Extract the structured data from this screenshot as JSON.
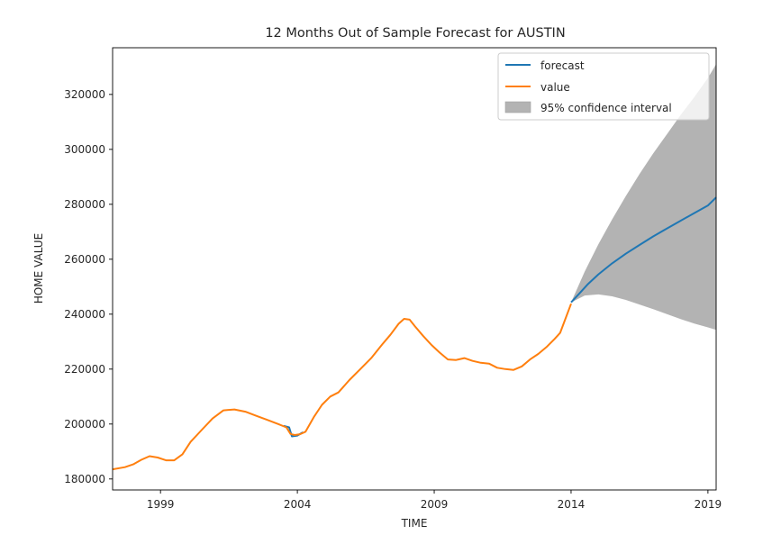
{
  "chart_data": {
    "type": "line",
    "title": "12 Months Out of Sample Forecast for AUSTIN",
    "xlabel": "TIME",
    "ylabel": "HOME VALUE",
    "xlim": [
      1997.25,
      2019.3
    ],
    "ylim": [
      176000,
      337000
    ],
    "xticks": [
      1999,
      2004,
      2009,
      2014,
      2019
    ],
    "xtick_labels": [
      "1999",
      "2004",
      "2009",
      "2014",
      "2019"
    ],
    "yticks": [
      180000,
      200000,
      220000,
      240000,
      260000,
      280000,
      300000,
      320000
    ],
    "ytick_labels": [
      "180000",
      "200000",
      "220000",
      "240000",
      "260000",
      "280000",
      "300000",
      "320000"
    ],
    "grid": false,
    "legend_position": "top-right",
    "series": [
      {
        "name": "value",
        "color": "#ff7f0e",
        "x": [
          1997.25,
          1997.7,
          1998.0,
          1998.3,
          1998.6,
          1998.9,
          1999.2,
          1999.5,
          1999.8,
          2000.1,
          2000.5,
          2000.9,
          2001.3,
          2001.7,
          2002.1,
          2002.5,
          2002.9,
          2003.3,
          2003.6,
          2003.75,
          2003.9,
          2004.1,
          2004.3,
          2004.6,
          2004.9,
          2005.2,
          2005.5,
          2005.9,
          2006.3,
          2006.7,
          2007.1,
          2007.4,
          2007.7,
          2007.9,
          2008.1,
          2008.3,
          2008.6,
          2008.9,
          2009.2,
          2009.5,
          2009.8,
          2010.1,
          2010.4,
          2010.7,
          2011.0,
          2011.3,
          2011.6,
          2011.9,
          2012.2,
          2012.5,
          2012.8,
          2013.1,
          2013.4,
          2013.6,
          2013.8,
          2014.0
        ],
        "y": [
          183500,
          184300,
          185300,
          187000,
          188300,
          187800,
          186800,
          186800,
          189000,
          193500,
          197800,
          202000,
          205000,
          205300,
          204500,
          203000,
          201500,
          200000,
          198800,
          196400,
          196000,
          196300,
          197200,
          202500,
          207000,
          210000,
          211500,
          216000,
          220000,
          224000,
          229000,
          232500,
          236500,
          238300,
          238000,
          235500,
          232000,
          228800,
          226000,
          223500,
          223300,
          224000,
          223000,
          222300,
          222000,
          220500,
          220000,
          219700,
          221000,
          223500,
          225500,
          228000,
          231000,
          233200,
          238500,
          243800
        ]
      },
      {
        "name": "forecast",
        "color": "#1f77b4",
        "x": [
          2003.5,
          2003.7,
          2003.8,
          2004.0,
          2004.2,
          2014.0,
          2014.3,
          2014.6,
          2015.0,
          2015.5,
          2016.0,
          2016.5,
          2017.0,
          2017.5,
          2018.0,
          2018.5,
          2019.0,
          2019.3
        ],
        "y": [
          199300,
          198800,
          195500,
          195800,
          197000,
          244300,
          247500,
          250800,
          254500,
          258500,
          262000,
          265200,
          268300,
          271200,
          274000,
          276800,
          279600,
          282500
        ]
      },
      {
        "name": "95% confidence interval",
        "color": "#b3b3b3",
        "x": [
          2014.0,
          2014.5,
          2015.0,
          2015.5,
          2016.0,
          2016.5,
          2017.0,
          2017.5,
          2018.0,
          2018.5,
          2019.0,
          2019.3
        ],
        "upper": [
          244300,
          255500,
          265500,
          274500,
          283000,
          291000,
          298500,
          305500,
          312500,
          319000,
          326000,
          331000
        ],
        "lower": [
          244300,
          246800,
          247200,
          246500,
          245200,
          243500,
          241800,
          240000,
          238200,
          236600,
          235200,
          234300
        ]
      }
    ]
  }
}
